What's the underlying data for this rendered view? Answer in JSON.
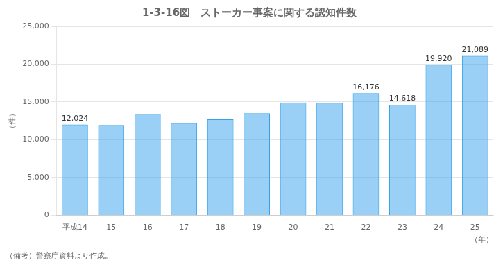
{
  "chart_data": {
    "type": "bar",
    "title": "1-3-16図　ストーカー事案に関する認知件数",
    "xlabel": "（年）",
    "ylabel": "（件）",
    "annotations": [
      "（備考）警察庁資料より作成。"
    ],
    "categories": [
      "平成14",
      "15",
      "16",
      "17",
      "18",
      "19",
      "20",
      "21",
      "22",
      "23",
      "24",
      "25"
    ],
    "values": [
      12024,
      11945,
      13424,
      12208,
      12693,
      13511,
      14927,
      14888,
      16176,
      14618,
      19920,
      21089
    ],
    "value_labels": [
      "12,024",
      null,
      null,
      null,
      null,
      null,
      null,
      null,
      "16,176",
      "14,618",
      "19,920",
      "21,089"
    ],
    "ylim": [
      0,
      25000
    ],
    "yticks": [
      0,
      {
        "value": 5000,
        "label": "5,000"
      },
      {
        "value": 10000,
        "label": "10,000"
      },
      {
        "value": 15000,
        "label": "15,000"
      },
      {
        "value": 20000,
        "label": "20,000"
      },
      {
        "value": 25000,
        "label": "25,000"
      }
    ],
    "grid": true
  }
}
